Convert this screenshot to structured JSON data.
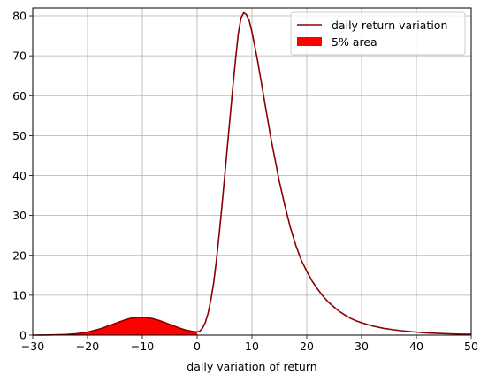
{
  "chart_data": {
    "type": "line",
    "title": "",
    "xlabel": "daily variation of return",
    "ylabel": "",
    "xlim": [
      -30,
      50
    ],
    "ylim": [
      0,
      82
    ],
    "x_ticks": [
      -30,
      -20,
      -10,
      0,
      10,
      20,
      30,
      40,
      50
    ],
    "y_ticks": [
      0,
      10,
      20,
      30,
      40,
      50,
      60,
      70,
      80
    ],
    "grid": true,
    "legend_position": "top-right",
    "series": [
      {
        "name": "daily return variation",
        "kind": "line",
        "color": "#8b0000",
        "x": [
          -30,
          -28,
          -26,
          -24,
          -22,
          -20,
          -18,
          -16,
          -14,
          -13,
          -12,
          -11,
          -10,
          -9,
          -8,
          -7,
          -6,
          -5,
          -4,
          -3,
          -2,
          -1,
          0,
          0.5,
          1,
          1.5,
          2,
          2.5,
          3,
          3.5,
          4,
          4.5,
          5,
          5.5,
          6,
          6.5,
          7,
          7.5,
          8,
          8.5,
          9,
          9.5,
          10,
          10.5,
          11,
          11.5,
          12,
          12.5,
          13,
          13.5,
          14,
          15,
          16,
          17,
          18,
          19,
          20,
          21,
          22,
          23,
          24,
          25,
          26,
          27,
          28,
          29,
          30,
          32,
          34,
          36,
          38,
          40,
          42,
          44,
          46,
          48,
          50
        ],
        "y": [
          0.0,
          0.02,
          0.06,
          0.15,
          0.35,
          0.75,
          1.45,
          2.4,
          3.4,
          3.9,
          4.25,
          4.4,
          4.45,
          4.35,
          4.1,
          3.7,
          3.2,
          2.7,
          2.15,
          1.65,
          1.25,
          0.95,
          0.8,
          1.0,
          1.8,
          3.2,
          5.5,
          8.8,
          13.0,
          18.5,
          25.0,
          32.0,
          39.5,
          47.0,
          54.5,
          62.0,
          69.0,
          75.5,
          79.5,
          80.8,
          80.3,
          78.8,
          76.0,
          72.5,
          69.0,
          65.0,
          61.0,
          57.0,
          53.0,
          49.0,
          45.5,
          38.5,
          32.5,
          27.0,
          22.5,
          18.8,
          16.0,
          13.5,
          11.5,
          9.7,
          8.2,
          7.0,
          5.9,
          5.0,
          4.2,
          3.6,
          3.1,
          2.3,
          1.7,
          1.3,
          1.0,
          0.75,
          0.55,
          0.42,
          0.33,
          0.25,
          0.2
        ]
      },
      {
        "name": "5% area",
        "kind": "area",
        "color": "#ff0000",
        "x": [
          -30,
          -28,
          -26,
          -24,
          -22,
          -20,
          -18,
          -16,
          -14,
          -13,
          -12,
          -11,
          -10,
          -9,
          -8,
          -7,
          -6,
          -5,
          -4,
          -3,
          -2,
          -1,
          0
        ],
        "y": [
          0.0,
          0.02,
          0.06,
          0.15,
          0.35,
          0.75,
          1.45,
          2.4,
          3.4,
          3.9,
          4.25,
          4.4,
          4.45,
          4.35,
          4.1,
          3.7,
          3.2,
          2.7,
          2.15,
          1.65,
          1.25,
          0.95,
          0.8
        ]
      }
    ]
  }
}
